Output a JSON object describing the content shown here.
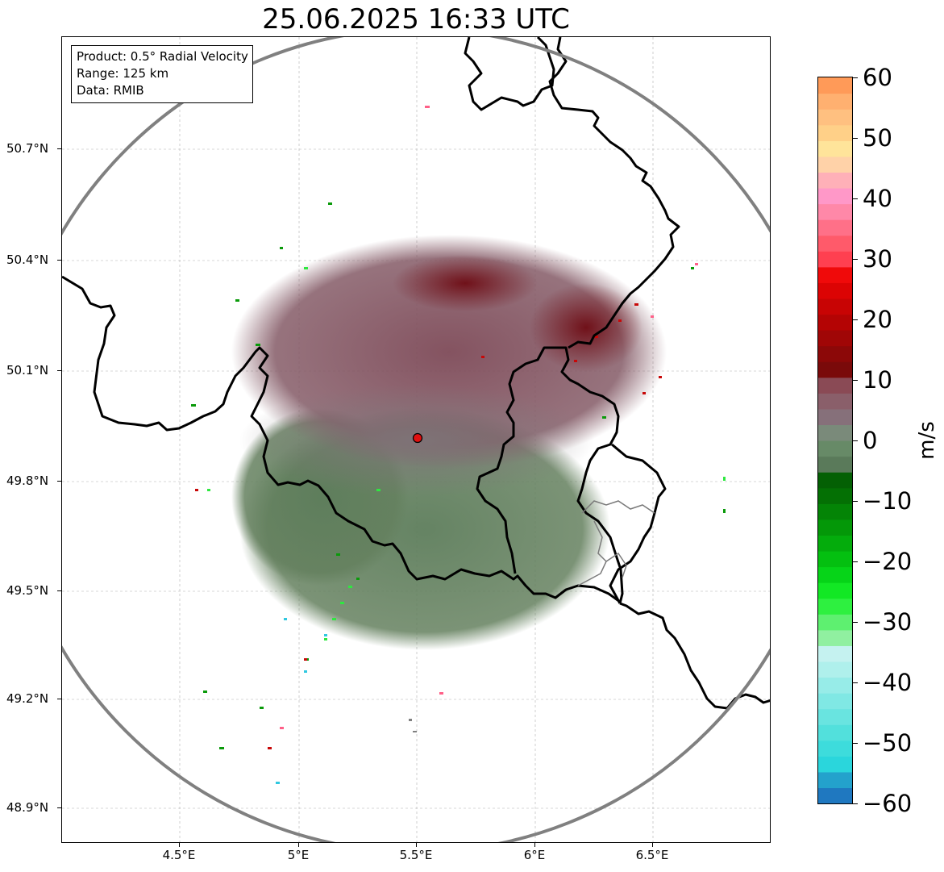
{
  "title": "25.06.2025 16:33 UTC",
  "info": {
    "product": "Product: 0.5° Radial Velocity",
    "range": "Range: 125 km",
    "source": "Data: RMIB"
  },
  "lat_ticks": [
    "50.7°N",
    "50.4°N",
    "50.1°N",
    "49.8°N",
    "49.5°N",
    "49.2°N",
    "48.9°N"
  ],
  "lon_ticks": [
    "4.5°E",
    "5°E",
    "5.5°E",
    "6°E",
    "6.5°E"
  ],
  "colorbar": {
    "label": "m/s",
    "ticks": [
      "60",
      "50",
      "40",
      "30",
      "20",
      "10",
      "0",
      "−10",
      "−20",
      "−30",
      "−40",
      "−50",
      "−60"
    ],
    "min": -60,
    "max": 60,
    "colors": [
      "#1f78c0",
      "#23a2cc",
      "#2ad6dc",
      "#3ddcdc",
      "#52e0dc",
      "#69e4e0",
      "#80e8e4",
      "#97ece8",
      "#aff0ec",
      "#c5f2f0",
      "#90f0a0",
      "#5ef070",
      "#2ef040",
      "#12e824",
      "#06d418",
      "#04c010",
      "#04ac0c",
      "#049808",
      "#048406",
      "#047004",
      "#046004",
      "#5a7a5a",
      "#678a67",
      "#7a8a7a",
      "#86707a",
      "#8a5f6a",
      "#8a4a55",
      "#7a0a0a",
      "#8c0808",
      "#a00606",
      "#b40404",
      "#c80404",
      "#dc0404",
      "#f00a0a",
      "#ff4050",
      "#ff5a6a",
      "#ff7088",
      "#ff88a8",
      "#ff98c8",
      "#ffb0b8",
      "#ffd2a8",
      "#ffe49a",
      "#ffd088",
      "#ffc080",
      "#ffb070",
      "#ff9a58"
    ]
  },
  "map": {
    "radar_site": "5.5°E 49.91°N",
    "boundaries": "country borders",
    "range_ring_color": "#808080",
    "positive_color": "#7a2a34",
    "negative_color": "#5a7a5a"
  }
}
